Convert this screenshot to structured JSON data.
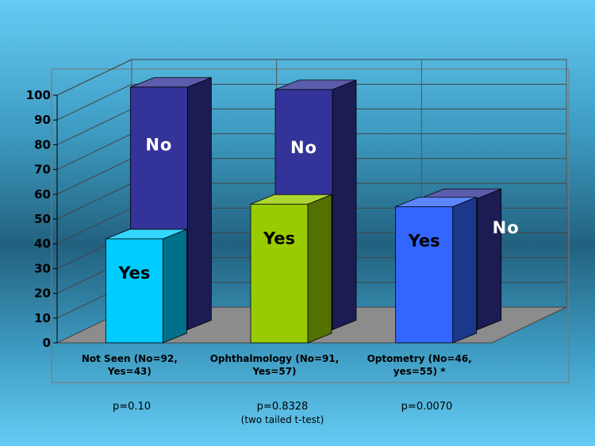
{
  "chart_data": {
    "type": "bar",
    "categories": [
      [
        "Not Seen (No=92,",
        "Yes=43)"
      ],
      [
        "Ophthalmology (No=91,",
        "Yes=57)"
      ],
      [
        "Optometry (No=46,",
        "yes=55) *"
      ]
    ],
    "series": [
      {
        "name": "Yes",
        "values": [
          42,
          56,
          55
        ],
        "colors": [
          "#00ccff",
          "#99cc00",
          "#3366ff"
        ]
      },
      {
        "name": "No",
        "values": [
          98,
          97,
          53
        ],
        "colors": [
          "#333399",
          "#333399",
          "#333399"
        ]
      }
    ],
    "bar_labels": {
      "yes": "Yes",
      "no": "No"
    },
    "yticks": [
      "0",
      "10",
      "20",
      "30",
      "40",
      "50",
      "60",
      "70",
      "80",
      "90",
      "100"
    ],
    "ylim": [
      0,
      100
    ],
    "grid": true,
    "title": "",
    "xlabel": "",
    "ylabel": ""
  },
  "pvalues": [
    {
      "text": "p=0.10",
      "sub": ""
    },
    {
      "text": "p=0.8328",
      "sub": "(two tailed t-test)"
    },
    {
      "text": "p=0.0070",
      "sub": ""
    }
  ]
}
